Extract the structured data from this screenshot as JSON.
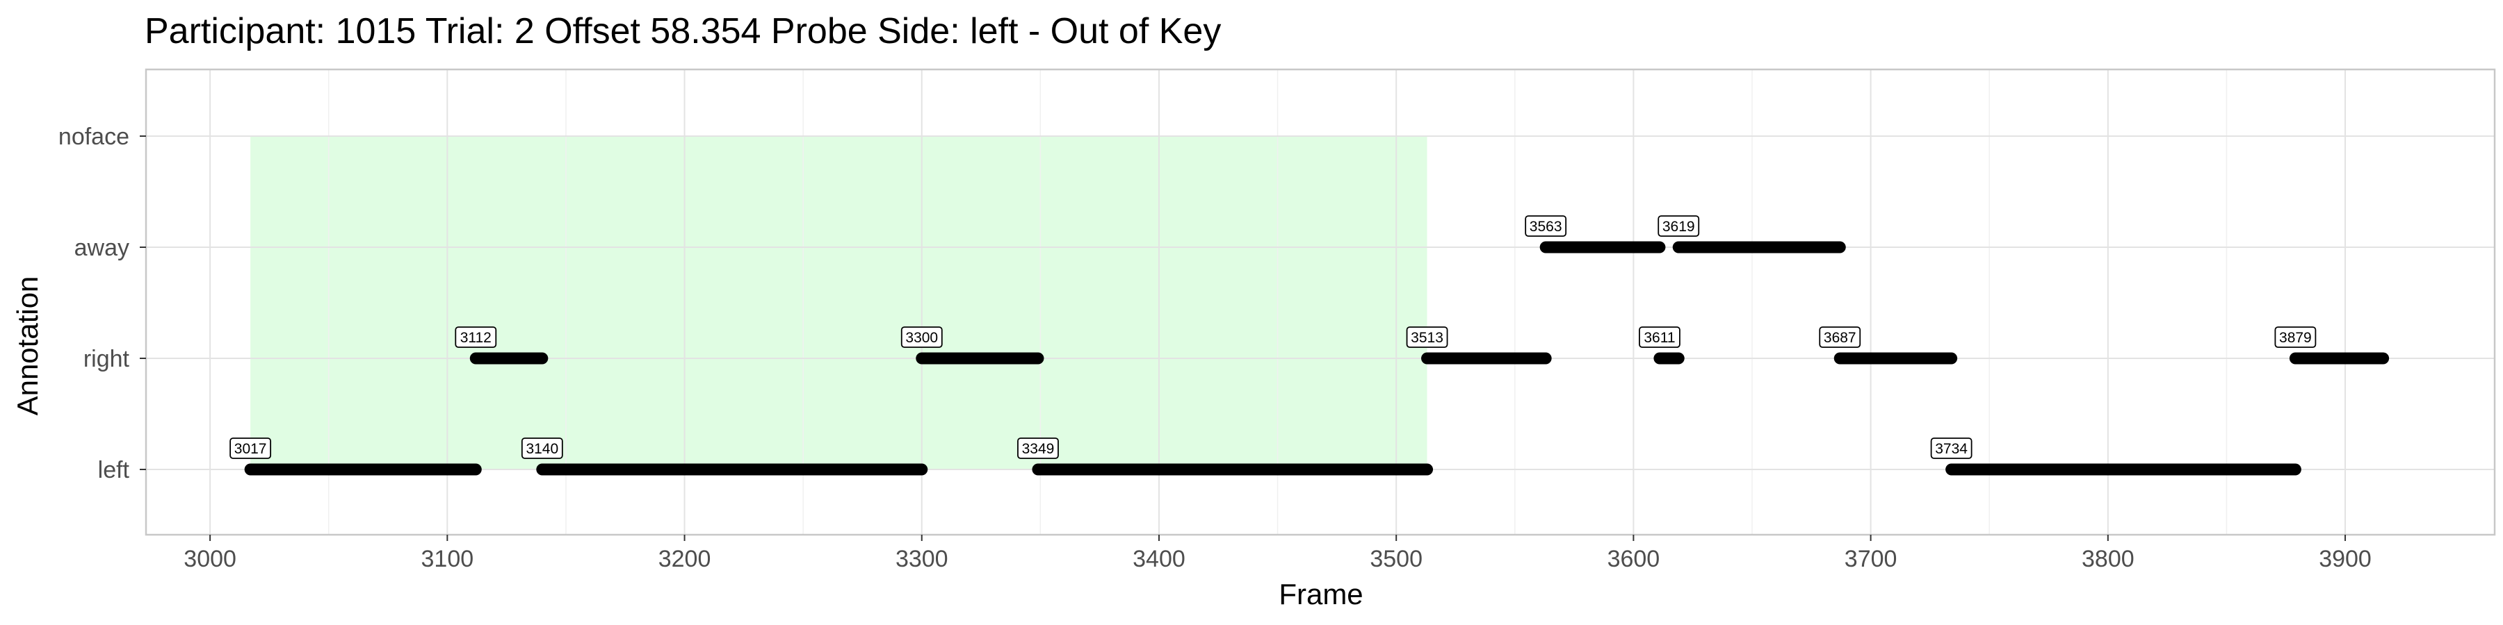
{
  "chart_data": {
    "type": "timeline",
    "title": "Participant: 1015 Trial: 2 Offset 58.354 Probe Side: left  -  Out of Key",
    "xlabel": "Frame",
    "ylabel": "Annotation",
    "xlim": [
      2973,
      3963
    ],
    "x_ticks": [
      3000,
      3100,
      3200,
      3300,
      3400,
      3500,
      3600,
      3700,
      3800,
      3900
    ],
    "categories": [
      "left",
      "right",
      "away",
      "noface"
    ],
    "highlight": {
      "x_start": 3017,
      "x_end": 3513,
      "color": "#e0fde3"
    },
    "segments": [
      {
        "category": "left",
        "start": 3017,
        "end": 3112,
        "label": "3017"
      },
      {
        "category": "right",
        "start": 3112,
        "end": 3140,
        "label": "3112"
      },
      {
        "category": "left",
        "start": 3140,
        "end": 3300,
        "label": "3140"
      },
      {
        "category": "right",
        "start": 3300,
        "end": 3349,
        "label": "3300"
      },
      {
        "category": "left",
        "start": 3349,
        "end": 3513,
        "label": "3349"
      },
      {
        "category": "right",
        "start": 3513,
        "end": 3563,
        "label": "3513"
      },
      {
        "category": "away",
        "start": 3563,
        "end": 3611,
        "label": "3563"
      },
      {
        "category": "right",
        "start": 3611,
        "end": 3619,
        "label": "3611"
      },
      {
        "category": "away",
        "start": 3619,
        "end": 3687,
        "label": "3619"
      },
      {
        "category": "right",
        "start": 3687,
        "end": 3734,
        "label": "3687"
      },
      {
        "category": "left",
        "start": 3734,
        "end": 3879,
        "label": "3734"
      },
      {
        "category": "right",
        "start": 3879,
        "end": 3916,
        "label": "3879"
      }
    ],
    "grid": true,
    "legend": "none",
    "segment_color": "#000000",
    "grid_color": "#e3e3e3",
    "panel_border_color": "#c8c8c8"
  }
}
